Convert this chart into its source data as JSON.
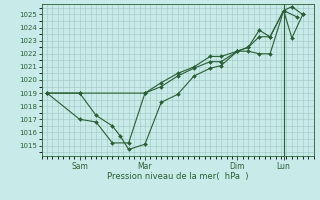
{
  "bg_color": "#c8eae8",
  "plot_bg_color": "#c8eae8",
  "grid_color": "#a0c8c4",
  "line_color": "#2a5e35",
  "marker_color": "#2a5e35",
  "xlabel": "Pression niveau de la mer(  hPa  )",
  "xlabel_color": "#2a5e35",
  "tick_label_color": "#2a5e35",
  "xtick_labels": [
    "Sam",
    "Mar",
    "Dim",
    "Lun"
  ],
  "xtick_positions": [
    0.14,
    0.38,
    0.72,
    0.89
  ],
  "ylim": [
    1014.2,
    1025.8
  ],
  "yticks": [
    1015,
    1016,
    1017,
    1018,
    1019,
    1020,
    1021,
    1022,
    1023,
    1024,
    1025
  ],
  "xlim": [
    0.0,
    1.0
  ],
  "vline_x": 0.89,
  "series": [
    {
      "x": [
        0.02,
        0.14,
        0.2,
        0.26,
        0.29,
        0.32,
        0.38,
        0.44,
        0.5,
        0.56,
        0.62,
        0.66,
        0.72,
        0.76,
        0.8,
        0.84,
        0.89,
        0.92,
        0.96
      ],
      "y": [
        1019.0,
        1019.0,
        1017.3,
        1016.5,
        1015.7,
        1014.7,
        1015.1,
        1018.3,
        1018.9,
        1020.3,
        1020.9,
        1021.1,
        1022.2,
        1022.2,
        1022.0,
        1022.0,
        1025.3,
        1025.6,
        1025.0
      ]
    },
    {
      "x": [
        0.02,
        0.14,
        0.2,
        0.26,
        0.32,
        0.38,
        0.44,
        0.5,
        0.56,
        0.62,
        0.66,
        0.72,
        0.76,
        0.8,
        0.84,
        0.89,
        0.92,
        0.96
      ],
      "y": [
        1019.0,
        1017.0,
        1016.8,
        1015.2,
        1015.2,
        1019.0,
        1019.5,
        1020.3,
        1020.9,
        1021.4,
        1021.4,
        1022.2,
        1022.5,
        1023.3,
        1023.3,
        1025.3,
        1023.2,
        1025.0
      ]
    },
    {
      "x": [
        0.02,
        0.14,
        0.38,
        0.44,
        0.5,
        0.56,
        0.62,
        0.66,
        0.72,
        0.76,
        0.8,
        0.84,
        0.89,
        0.94
      ],
      "y": [
        1019.0,
        1019.0,
        1019.0,
        1019.8,
        1020.5,
        1021.0,
        1021.8,
        1021.8,
        1022.2,
        1022.5,
        1023.8,
        1023.3,
        1025.3,
        1024.8
      ]
    }
  ]
}
